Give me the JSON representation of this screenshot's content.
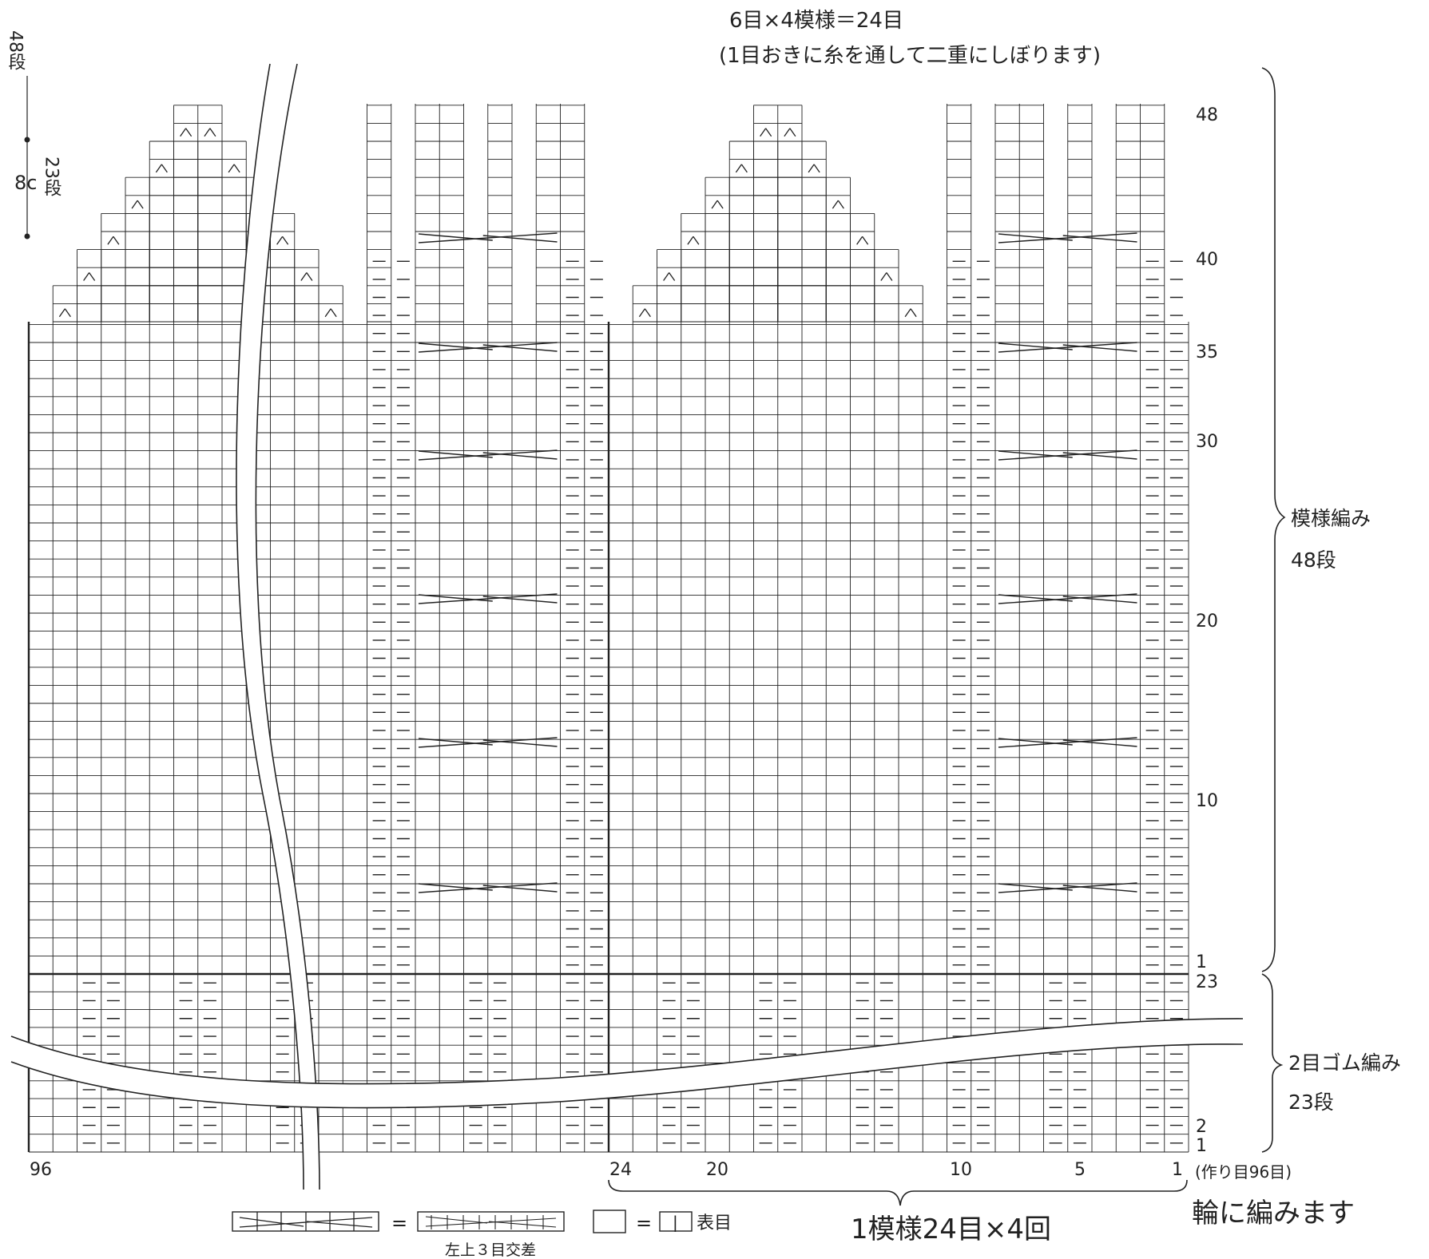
{
  "header": {
    "line1": "6目×4模様＝24目",
    "line2": "(1目おきに糸を通して二重にしぼります)"
  },
  "left_note": {
    "total_rows": "48段",
    "length": "8c",
    "rows_23": "23段"
  },
  "right_labels": {
    "pattern_name": "模様編み",
    "pattern_rows": "48段",
    "rib_name": "2目ゴム編み",
    "rib_rows": "23段"
  },
  "row_labels": {
    "pattern": [
      "48",
      "40",
      "35",
      "30",
      "20",
      "10",
      "1"
    ],
    "rib": [
      "23",
      "2",
      "1"
    ]
  },
  "col_labels": {
    "left_end": "96",
    "repeat": [
      "24",
      "20",
      "10",
      "5",
      "1"
    ],
    "cast_on": "(作り目96目)"
  },
  "bottom": {
    "repeat_note": "1模様24目×4回",
    "round_note": "輪に編みます"
  },
  "legend": {
    "equals": "=",
    "cable_name": "左上３目交差",
    "knit_symbol": "|",
    "knit_name": "表目"
  }
}
